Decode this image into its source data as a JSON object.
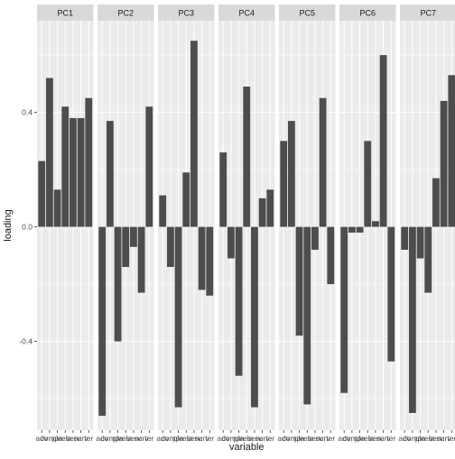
{
  "chart_data": {
    "type": "bar",
    "facets": [
      "PC1",
      "PC2",
      "PC3",
      "PC4",
      "PC5",
      "PC6",
      "PC7"
    ],
    "series": [
      {
        "name": "PC1",
        "values": [
          0.23,
          0.52,
          0.13,
          0.42,
          0.38,
          0.38,
          0.45
        ]
      },
      {
        "name": "PC2",
        "values": [
          -0.66,
          0.37,
          -0.4,
          -0.14,
          -0.07,
          -0.23,
          0.42
        ]
      },
      {
        "name": "PC3",
        "values": [
          0.11,
          -0.14,
          -0.63,
          0.19,
          0.65,
          -0.22,
          -0.24
        ]
      },
      {
        "name": "PC4",
        "values": [
          0.26,
          -0.11,
          -0.52,
          0.49,
          -0.63,
          0.1,
          0.13
        ]
      },
      {
        "name": "PC5",
        "values": [
          0.3,
          0.37,
          -0.38,
          -0.62,
          -0.08,
          0.45,
          -0.2
        ]
      },
      {
        "name": "PC6",
        "values": [
          -0.58,
          -0.02,
          -0.02,
          0.3,
          0.02,
          0.6,
          -0.47
        ]
      },
      {
        "name": "PC7",
        "values": [
          -0.08,
          -0.65,
          -0.11,
          -0.23,
          0.17,
          0.44,
          0.53
        ]
      }
    ],
    "ytick_values": [
      -0.4,
      0.0,
      0.4
    ],
    "ytick_labels": [
      "-0.4",
      "0.0",
      "0.4"
    ],
    "x_tick_text": [
      "adv",
      "comp",
      "pla",
      "rela",
      "serv",
      "surv",
      "ter"
    ],
    "ylim": [
      -0.71,
      0.72
    ],
    "xlabel": "variable",
    "ylabel": "loading",
    "grid": true,
    "legend": "none",
    "colors": {
      "bar": "#4d4d4d",
      "panel": "#ebebeb",
      "strip": "#d9d9d9",
      "grid_major": "#ffffff",
      "text": "#4d4d4d",
      "strip_text": "#1a1a1a"
    }
  }
}
